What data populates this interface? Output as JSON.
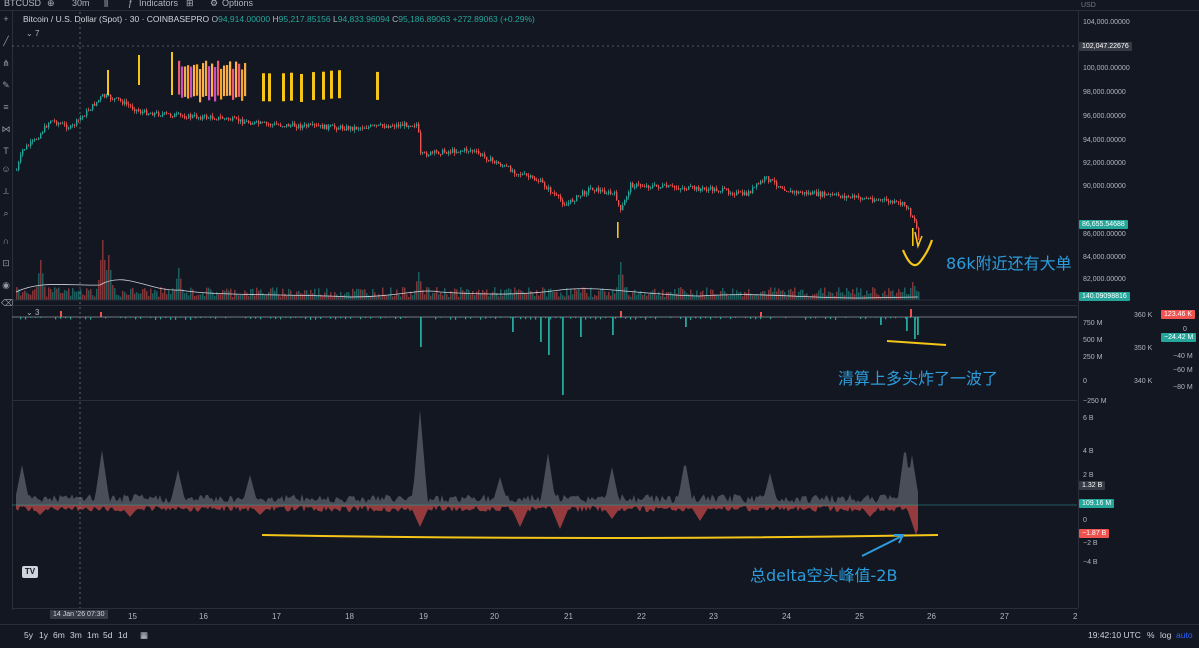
{
  "topbar": {
    "symbol": "BTCUSD",
    "interval": "30m",
    "indicators_label": "Indicators",
    "options_label": "Options"
  },
  "legend": {
    "title": "Bitcoin / U.S. Dollar (Spot) · 30 · COINBASEPRO",
    "open_label": "O",
    "open": "94,914.00000",
    "high_label": "H",
    "high": "95,217.85156",
    "low_label": "L",
    "low": "94,833.96094",
    "close_label": "C",
    "close": "95,186.89063",
    "change": "+272.89063 (+0.29%)",
    "collapse_count": "7",
    "sub_count": "3"
  },
  "price_axis": {
    "usd_label": "USD",
    "labels": [
      "104,000.00000",
      "102,047.22676",
      "100,000.00000",
      "98,000.00000",
      "96,000.00000",
      "94,000.00000",
      "92,000.00000",
      "90,000.00000",
      "86,655.54688",
      "86,000.00000",
      "84,000.00000",
      "82,000.00000",
      "140.09098816"
    ],
    "crosshair_price": "102,047.22676",
    "last_price": "86,655.54688",
    "volume_value": "140.09098816"
  },
  "sub_axis": {
    "left_labels": [
      "750 M",
      "500 M",
      "250 M",
      "0",
      "−250 M"
    ],
    "mid_labels": [
      "360 K",
      "350 K",
      "340 K"
    ],
    "right_labels": [
      "0",
      "−40 M",
      "−60 M",
      "−80 M"
    ],
    "tag_red": "123.46 K",
    "tag_green": "−24.42 M"
  },
  "delta_axis": {
    "labels": [
      "6 B",
      "4 B",
      "2 B",
      "0",
      "−2 B",
      "−4 B"
    ],
    "tag_gray": "1.32 B",
    "tag_green": "109.16 M",
    "tag_red": "−1.87 B"
  },
  "date_axis": {
    "labels": [
      "15",
      "16",
      "17",
      "18",
      "19",
      "20",
      "21",
      "22",
      "23",
      "24",
      "25",
      "26",
      "27",
      "2"
    ],
    "cursor_date": "14 Jan '26",
    "cursor_time": "07:30"
  },
  "bottombar": {
    "ranges": [
      "5y",
      "1y",
      "6m",
      "3m",
      "1m",
      "5d",
      "1d"
    ],
    "clock": "19:42:10 UTC",
    "percent_label": "%",
    "log_label": "log",
    "auto_label": "auto"
  },
  "annotations": {
    "note1": "86k附近还有大单",
    "note2": "清算上多头炸了一波了",
    "note3": "总delta空头峰值-2B"
  },
  "colors": {
    "bg": "#131722",
    "up": "#26a69a",
    "down": "#ef5350",
    "annotation": "#2d9cdb",
    "marker": "#f5c518"
  }
}
